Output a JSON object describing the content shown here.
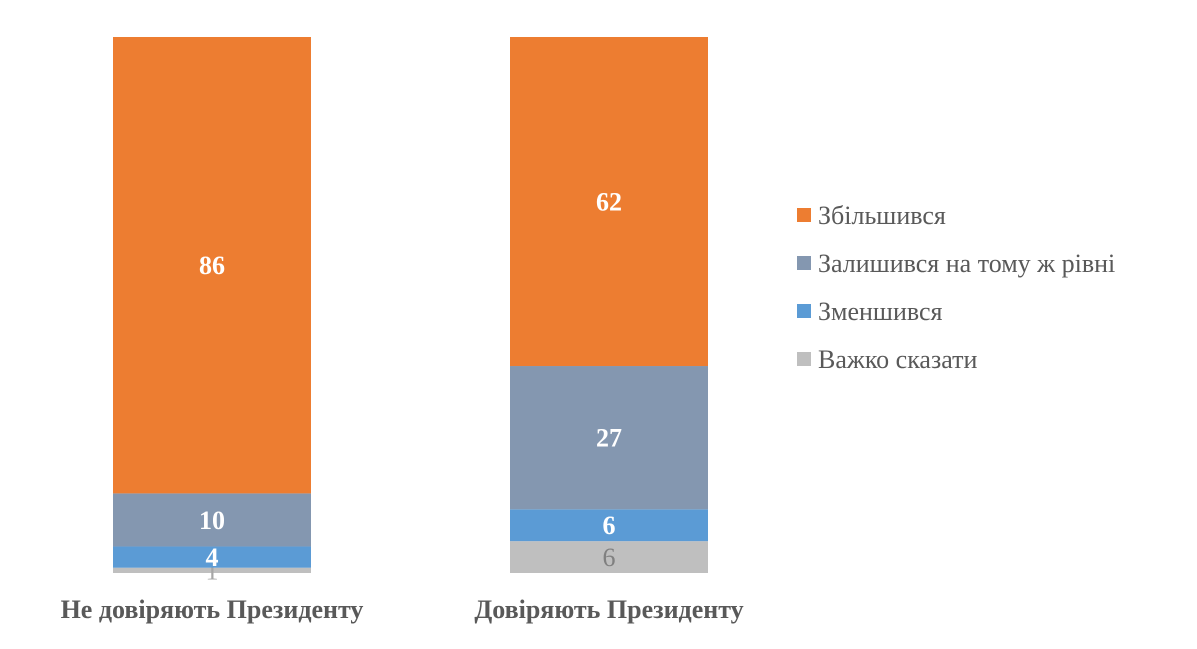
{
  "chart_data": {
    "type": "stacked-bar",
    "categories": [
      "Не довіряють Президенту",
      "Довіряють Президенту"
    ],
    "series": [
      {
        "name": "Збільшився",
        "values": [
          86,
          62
        ],
        "color": "#ED7D31"
      },
      {
        "name": "Залишився на тому ж рівні",
        "values": [
          10,
          27
        ],
        "color": "#8497B0"
      },
      {
        "name": "Зменшився",
        "values": [
          4,
          6
        ],
        "color": "#5B9BD5"
      },
      {
        "name": "Важко сказати",
        "values": [
          1,
          6
        ],
        "color": "#BFBFBF"
      }
    ],
    "ylim": [
      0,
      100
    ],
    "grid": false,
    "legend_position": "right"
  }
}
